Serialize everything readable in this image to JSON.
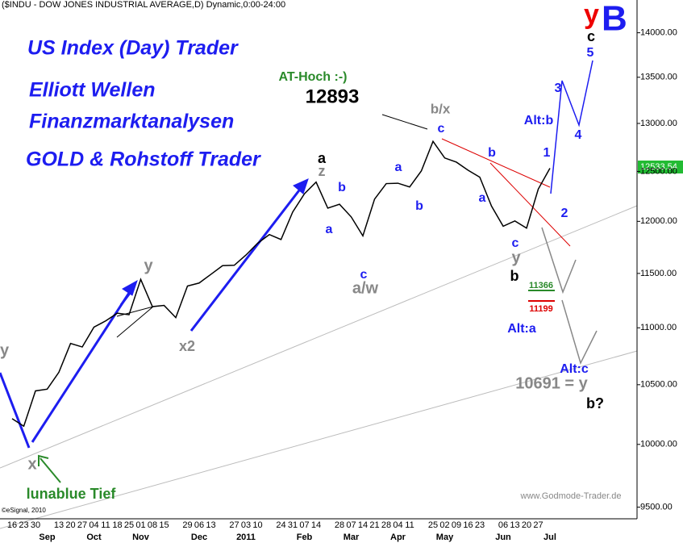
{
  "chart_data": {
    "type": "line",
    "title": "($INDU - DOW JONES INDUSTRIAL AVERAGE,D) Dynamic,0:00-24:00",
    "copyright": "©eSignal, 2010",
    "watermark": "www.Godmode-Trader.de",
    "brand_lines": [
      "US Index (Day) Trader",
      "Elliott Wellen",
      "Finanzmarktanalysen",
      "GOLD & Rohstoff Trader"
    ],
    "degree": [
      "y",
      "B"
    ],
    "last_price": 12533.54,
    "log_scale": true,
    "color": "#000000",
    "categories": [
      "16",
      "23",
      "30",
      null,
      "13",
      "20",
      "27",
      "04",
      "11",
      "18",
      "25",
      "01",
      "08",
      "15",
      null,
      "29",
      "06",
      "13",
      null,
      "27",
      "03",
      "10",
      null,
      "24",
      "31",
      "07",
      "14",
      null,
      "28",
      "07",
      "14",
      "21",
      "28",
      "04",
      "11",
      null,
      "25",
      "02",
      "09",
      "16",
      "23",
      null,
      "06",
      "13",
      "20",
      "27",
      null
    ],
    "months": [
      null,
      null,
      null,
      "Sep",
      null,
      null,
      null,
      "Oct",
      null,
      null,
      null,
      "Nov",
      null,
      null,
      null,
      null,
      "Dec",
      null,
      null,
      null,
      "2011",
      null,
      null,
      null,
      null,
      "Feb",
      null,
      null,
      null,
      "Mar",
      null,
      null,
      null,
      "Apr",
      null,
      null,
      null,
      "May",
      null,
      null,
      null,
      null,
      "Jun",
      null,
      null,
      null,
      "Jul"
    ],
    "values": [
      10213,
      10150,
      10447,
      10462,
      10607,
      10860,
      10829,
      11006,
      11062,
      11132,
      11118,
      11444,
      11192,
      11203,
      11092,
      11382,
      11410,
      11491,
      11573,
      11577,
      11674,
      11787,
      11871,
      11823,
      12092,
      12273,
      12391,
      12130,
      12169,
      12044,
      11858,
      12220,
      12376,
      12380,
      12342,
      12505,
      12811,
      12638,
      12595,
      12512,
      12441,
      12151,
      11952,
      12004,
      11934,
      12320,
      12533
    ],
    "ylim": [
      9410,
      14380
    ],
    "yticks": [
      {
        "value": 9500,
        "label": "9500.00"
      },
      {
        "value": 10000,
        "label": "10000.00"
      },
      {
        "value": 10500,
        "label": "10500.00"
      },
      {
        "value": 11000,
        "label": "11000.00"
      },
      {
        "value": 11500,
        "label": "11500.00"
      },
      {
        "value": 12000,
        "label": "12000.00"
      },
      {
        "value": 12500,
        "label": "12500.00"
      },
      {
        "value": 13000,
        "label": "13000.00"
      },
      {
        "value": 13500,
        "label": "13500.00"
      },
      {
        "value": 14000,
        "label": "14000.00"
      }
    ],
    "annotations": [
      {
        "text": "AT-Hoch :-)",
        "color": "#2a8a2a"
      },
      {
        "text": "12893",
        "color": "#000000"
      },
      {
        "text": "c",
        "color": "#000000"
      },
      {
        "text": "5",
        "color": "#1d1df0"
      },
      {
        "text": "3",
        "color": "#1d1df0"
      },
      {
        "text": "Alt:b",
        "color": "#1d1df0"
      },
      {
        "text": "4",
        "color": "#1d1df0"
      },
      {
        "text": "1",
        "color": "#1d1df0"
      },
      {
        "text": "2",
        "color": "#1d1df0"
      },
      {
        "text": "b/x",
        "color": "#888888"
      },
      {
        "text": "c",
        "color": "#1d1df0"
      },
      {
        "text": "b",
        "color": "#1d1df0"
      },
      {
        "text": "a",
        "color": "#1d1df0"
      },
      {
        "text": "c",
        "color": "#1d1df0"
      },
      {
        "text": "y",
        "color": "#888888"
      },
      {
        "text": "b",
        "color": "#000000"
      },
      {
        "text": "11366",
        "color": "#2a8a2a"
      },
      {
        "text": "11199",
        "color": "#dd0000"
      },
      {
        "text": "Alt:a",
        "color": "#1d1df0"
      },
      {
        "text": "Alt:c",
        "color": "#1d1df0"
      },
      {
        "text": "10691 = y",
        "color": "#888888"
      },
      {
        "text": "b?",
        "color": "#000000"
      },
      {
        "text": "a",
        "color": "#000000"
      },
      {
        "text": "z",
        "color": "#888888"
      },
      {
        "text": "b",
        "color": "#1d1df0"
      },
      {
        "text": "a",
        "color": "#1d1df0"
      },
      {
        "text": "a",
        "color": "#1d1df0"
      },
      {
        "text": "b",
        "color": "#1d1df0"
      },
      {
        "text": "c",
        "color": "#1d1df0"
      },
      {
        "text": "a/w",
        "color": "#888888"
      },
      {
        "text": "y",
        "color": "#888888"
      },
      {
        "text": "x2",
        "color": "#888888"
      },
      {
        "text": "x",
        "color": "#888888"
      },
      {
        "text": "y",
        "color": "#888888"
      },
      {
        "text": "lunablue Tief",
        "color": "#2a8a2a"
      }
    ]
  }
}
